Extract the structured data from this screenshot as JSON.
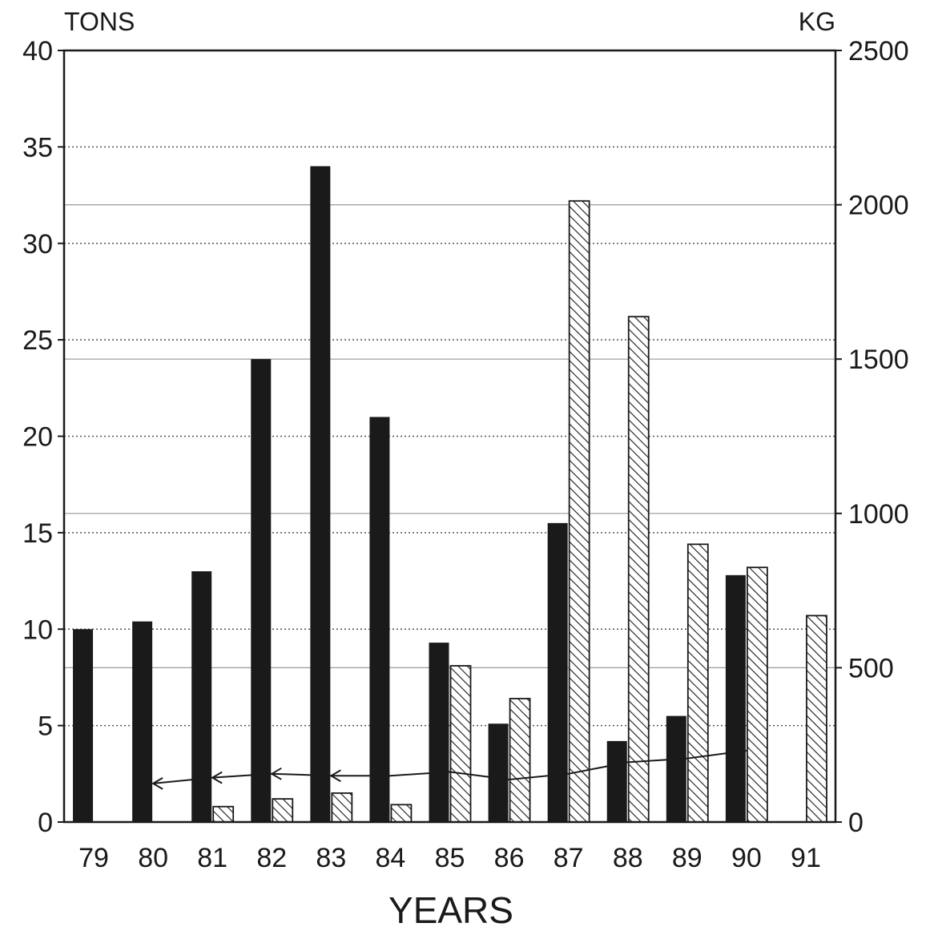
{
  "chart_data": {
    "type": "bar",
    "title": "",
    "xlabel": "YEARS",
    "ylabel_left": "TONS",
    "ylabel_right": "KG",
    "ylim_left": [
      0,
      40
    ],
    "ylim_right": [
      0,
      2500
    ],
    "yticks_left": [
      "0",
      "5",
      "10",
      "15",
      "20",
      "25",
      "30",
      "35",
      "40"
    ],
    "yticks_right": [
      "0",
      "500",
      "1000",
      "1500",
      "2000",
      "2500"
    ],
    "grid": true,
    "categories": [
      "79",
      "80",
      "81",
      "82",
      "83",
      "84",
      "85",
      "86",
      "87",
      "88",
      "89",
      "90",
      "91"
    ],
    "series": [
      {
        "axis": "left",
        "style": "solid",
        "color": "#1a1a1a",
        "values": [
          10.0,
          10.4,
          13.0,
          24.0,
          34.0,
          21.0,
          9.3,
          5.1,
          15.5,
          4.2,
          5.5,
          12.8,
          null
        ]
      },
      {
        "axis": "left",
        "style": "hatched",
        "color": "#1a1a1a",
        "values": [
          null,
          null,
          0.8,
          1.2,
          1.5,
          0.9,
          8.1,
          6.4,
          32.2,
          26.2,
          14.4,
          13.2,
          10.7
        ]
      },
      {
        "axis": "left",
        "style": "line-with-arrows",
        "color": "#1a1a1a",
        "x": [
          "80",
          "81",
          "82",
          "83",
          "84",
          "85",
          "86",
          "87",
          "88",
          "89",
          "90"
        ],
        "values": [
          2.0,
          2.3,
          2.5,
          2.4,
          2.4,
          2.6,
          2.2,
          2.5,
          3.1,
          3.3,
          3.7
        ]
      }
    ]
  }
}
